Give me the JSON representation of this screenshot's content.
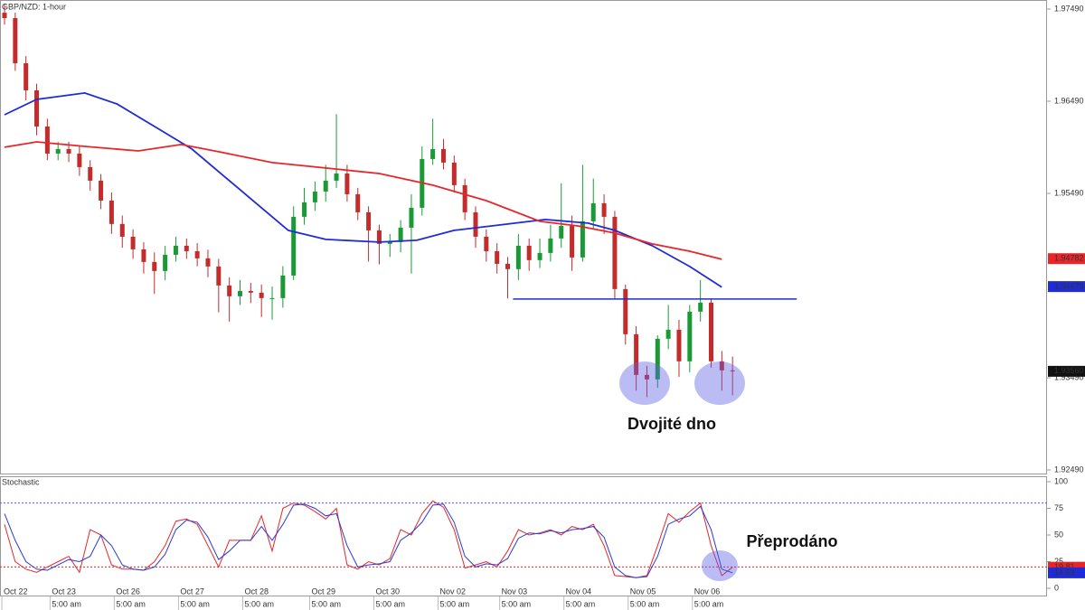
{
  "chart_data": [
    {
      "type": "candlestick",
      "title": "GBP/NZD: 1-hour",
      "x": [
        0,
        4,
        8,
        12,
        16,
        20,
        24,
        28,
        32,
        36,
        40,
        44,
        48,
        52,
        56,
        60,
        64,
        68,
        72,
        76,
        80,
        84,
        88,
        92,
        96,
        100,
        104,
        108,
        112,
        116,
        120,
        124,
        128,
        132,
        136,
        140,
        144,
        148,
        152,
        156,
        160,
        164,
        168,
        172,
        176,
        180,
        184,
        188,
        192,
        196,
        200,
        204,
        208,
        212,
        216,
        220,
        224,
        228,
        232,
        236,
        240,
        244,
        248,
        252,
        256,
        260,
        264,
        268,
        272
      ],
      "open": [
        1.9745,
        1.97392,
        1.96902,
        1.96608,
        1.96216,
        1.95922,
        1.95971,
        1.95922,
        1.95775,
        1.95628,
        1.95412,
        1.95158,
        1.9502,
        1.94883,
        1.94746,
        1.94648,
        1.94824,
        1.94922,
        1.94863,
        1.94785,
        1.94697,
        1.94491,
        1.94374,
        1.94432,
        1.94413,
        1.94354,
        1.94354,
        1.94599,
        1.95236,
        1.95393,
        1.9551,
        1.95628,
        1.95706,
        1.95481,
        1.95285,
        1.95089,
        1.94942,
        1.94962,
        1.95118,
        1.95334,
        1.95863,
        1.95971,
        1.95824,
        1.95579,
        1.95285,
        1.9502,
        1.94863,
        1.94726,
        1.94668,
        1.94922,
        1.94766,
        1.94844,
        1.95001,
        1.95138,
        1.94795,
        1.95187,
        1.95383,
        1.95236,
        1.94452,
        1.93962,
        1.93521,
        1.93472,
        1.93913,
        1.94011,
        1.93668,
        1.94207,
        1.94305,
        1.93668,
        1.9357
      ],
      "high": [
        1.9755,
        1.9745,
        1.9698,
        1.9668,
        1.963,
        1.9605,
        1.9605,
        1.96,
        1.9585,
        1.957,
        1.955,
        1.9525,
        1.951,
        1.9496,
        1.9485,
        1.9492,
        1.9502,
        1.95,
        1.9495,
        1.9488,
        1.9478,
        1.9458,
        1.9455,
        1.9452,
        1.945,
        1.9448,
        1.947,
        1.9535,
        1.9555,
        1.9562,
        1.958,
        1.9635,
        1.958,
        1.9555,
        1.9535,
        1.9515,
        1.9505,
        1.952,
        1.9548,
        1.96,
        1.963,
        1.9608,
        1.959,
        1.9565,
        1.9535,
        1.951,
        1.9495,
        1.948,
        1.9505,
        1.95,
        1.95,
        1.9515,
        1.956,
        1.9525,
        1.958,
        1.9565,
        1.9548,
        1.953,
        1.945,
        1.9405,
        1.9362,
        1.9395,
        1.9428,
        1.9412,
        1.9428,
        1.9455,
        1.9435,
        1.9378,
        1.9372
      ],
      "low": [
        1.9732,
        1.9682,
        1.965,
        1.9612,
        1.9585,
        1.9585,
        1.9583,
        1.9568,
        1.9552,
        1.9532,
        1.9505,
        1.949,
        1.9478,
        1.9462,
        1.944,
        1.9455,
        1.9475,
        1.9478,
        1.947,
        1.9458,
        1.942,
        1.941,
        1.9428,
        1.943,
        1.9415,
        1.9412,
        1.9425,
        1.9455,
        1.9515,
        1.953,
        1.954,
        1.9555,
        1.954,
        1.952,
        1.9475,
        1.9472,
        1.948,
        1.9485,
        1.9462,
        1.9525,
        1.958,
        1.9575,
        1.955,
        1.952,
        1.949,
        1.9475,
        1.9462,
        1.9435,
        1.9455,
        1.9465,
        1.9468,
        1.9475,
        1.949,
        1.9465,
        1.9475,
        1.951,
        1.9505,
        1.9435,
        1.9385,
        1.9335,
        1.9328,
        1.9338,
        1.938,
        1.935,
        1.9355,
        1.941,
        1.936,
        1.9335,
        1.933
      ],
      "close": [
        1.97392,
        1.96902,
        1.96608,
        1.96216,
        1.95922,
        1.95971,
        1.95922,
        1.95775,
        1.95628,
        1.95412,
        1.95158,
        1.9502,
        1.94883,
        1.94746,
        1.94648,
        1.94824,
        1.94922,
        1.94863,
        1.94785,
        1.94697,
        1.94491,
        1.94374,
        1.94432,
        1.94413,
        1.94354,
        1.94354,
        1.94599,
        1.95236,
        1.95393,
        1.9551,
        1.95628,
        1.95706,
        1.95481,
        1.95285,
        1.95089,
        1.94942,
        1.94962,
        1.95118,
        1.95334,
        1.95863,
        1.95971,
        1.95824,
        1.95579,
        1.95285,
        1.9502,
        1.94863,
        1.94726,
        1.94668,
        1.94922,
        1.94766,
        1.94844,
        1.95001,
        1.95138,
        1.94795,
        1.95187,
        1.95383,
        1.95236,
        1.94452,
        1.93962,
        1.93521,
        1.93472,
        1.93913,
        1.94011,
        1.93668,
        1.94207,
        1.94305,
        1.93668,
        1.9357,
        1.9356
      ],
      "up_color": "#1a9a36",
      "down_color": "#c42b2b",
      "series": [
        {
          "color": "#1f2bd6",
          "x": [
            0,
            12,
            30,
            42,
            56,
            70,
            82,
            96,
            106,
            120,
            140,
            154,
            168,
            188,
            202,
            218,
            228,
            242,
            256,
            268
          ],
          "values": [
            1.96343,
            1.9651,
            1.96579,
            1.96461,
            1.96216,
            1.95971,
            1.95677,
            1.95334,
            1.95089,
            1.94991,
            1.94962,
            1.94981,
            1.95089,
            1.95158,
            1.95207,
            1.95167,
            1.95089,
            1.94922,
            1.94697,
            1.94472
          ]
        },
        {
          "color": "#e8262a",
          "x": [
            0,
            12,
            30,
            50,
            66,
            80,
            100,
            120,
            140,
            160,
            180,
            200,
            214,
            228,
            242,
            256,
            268
          ],
          "values": [
            1.95991,
            1.96049,
            1.96,
            1.95951,
            1.9602,
            1.95942,
            1.95824,
            1.95765,
            1.95706,
            1.95579,
            1.95412,
            1.95187,
            1.95138,
            1.9506,
            1.94942,
            1.94863,
            1.94775
          ]
        }
      ],
      "neckline": {
        "x": [
          190,
          296
        ],
        "y": 1.94344,
        "color": "#1f2bd6"
      },
      "annotations": [
        "Dvojité dno"
      ],
      "price_labels": [
        {
          "value": 1.94782,
          "color": "#e8262a"
        },
        {
          "value": 1.94479,
          "color": "#1f2bd6"
        },
        {
          "value": 1.9356,
          "label": "1.93560",
          "color": "#111111"
        }
      ],
      "xlim": [
        -1.69,
        389.5
      ],
      "ylim": [
        1.92441,
        1.97588
      ],
      "yticks": [
        {
          "value": 1.9749,
          "label": "1.97490"
        },
        {
          "value": 1.9649,
          "label": "1.96490"
        },
        {
          "value": 1.9549,
          "label": "1.95490"
        },
        {
          "value": 1.9349,
          "label": "1.93490"
        },
        {
          "value": 1.9249,
          "label": "1.92490"
        }
      ]
    },
    {
      "type": "stochastic",
      "title": "Stochastic",
      "x": [
        0,
        4,
        8,
        12,
        16,
        20,
        24,
        28,
        32,
        36,
        40,
        44,
        48,
        52,
        56,
        60,
        64,
        68,
        72,
        76,
        80,
        84,
        88,
        92,
        96,
        100,
        104,
        108,
        112,
        116,
        120,
        124,
        128,
        132,
        136,
        140,
        144,
        148,
        152,
        156,
        160,
        164,
        168,
        172,
        176,
        180,
        184,
        188,
        192,
        196,
        200,
        204,
        208,
        212,
        216,
        220,
        224,
        228,
        232,
        236,
        240,
        244,
        248,
        252,
        256,
        260,
        264,
        268,
        272
      ],
      "series": [
        {
          "color": "#e8262a",
          "values": [
            60,
            25,
            18,
            15,
            20,
            25,
            30,
            15,
            55,
            50,
            22,
            18,
            18,
            17,
            25,
            40,
            63,
            65,
            60,
            40,
            20,
            45,
            45,
            45,
            68,
            35,
            75,
            80,
            78,
            72,
            65,
            75,
            22,
            18,
            25,
            22,
            28,
            55,
            50,
            70,
            82,
            76,
            55,
            19,
            22,
            25,
            20,
            35,
            55,
            50,
            52,
            55,
            50,
            58,
            55,
            60,
            40,
            12,
            11,
            10,
            12,
            40,
            70,
            62,
            72,
            80,
            40,
            12,
            19.81
          ]
        },
        {
          "color": "#2a3bd6",
          "values": [
            70,
            45,
            25,
            18,
            17,
            22,
            27,
            25,
            30,
            50,
            40,
            22,
            18,
            17,
            20,
            32,
            55,
            64,
            62,
            48,
            27,
            35,
            45,
            45,
            58,
            45,
            60,
            78,
            79,
            75,
            68,
            70,
            40,
            20,
            22,
            23,
            25,
            45,
            52,
            62,
            78,
            79,
            62,
            30,
            20,
            23,
            22,
            28,
            47,
            52,
            51,
            54,
            52,
            55,
            56,
            58,
            48,
            20,
            12,
            10,
            11,
            30,
            60,
            65,
            68,
            77,
            55,
            18,
            14.53
          ]
        }
      ],
      "levels": [
        {
          "value": 80,
          "color": "#5a5ad6"
        },
        {
          "value": 20,
          "color": "#e8262a"
        }
      ],
      "annotations": [
        "Přeprodáno"
      ],
      "price_labels": [
        {
          "value": 19.81,
          "color": "#e8262a"
        },
        {
          "value": 14.53,
          "color": "#1f2bd6"
        }
      ],
      "xlim": [
        -1.69,
        389.5
      ],
      "ylim": [
        -7.6,
        105.1
      ],
      "yticks": [
        100,
        75,
        50,
        25,
        0
      ],
      "xticks": [
        {
          "value": -1,
          "label": "Oct 22"
        },
        {
          "value": 17,
          "label": "Oct 23"
        },
        {
          "value": 41,
          "label": "Oct 26"
        },
        {
          "value": 65,
          "label": "Oct 27"
        },
        {
          "value": 89,
          "label": "Oct 28"
        },
        {
          "value": 114,
          "label": "Oct 29"
        },
        {
          "value": 138,
          "label": "Oct 30"
        },
        {
          "value": 162,
          "label": "Nov 02"
        },
        {
          "value": 185,
          "label": "Nov 03"
        },
        {
          "value": 209,
          "label": "Nov 04"
        },
        {
          "value": 233,
          "label": "Nov 05"
        },
        {
          "value": 257,
          "label": "Nov 06"
        }
      ],
      "xticks_time": [
        {
          "value": 17,
          "label": "5:00 am"
        },
        {
          "value": 41,
          "label": "5:00 am"
        },
        {
          "value": 65,
          "label": "5:00 am"
        },
        {
          "value": 89,
          "label": "5:00 am"
        },
        {
          "value": 114,
          "label": "5:00 am"
        },
        {
          "value": 138,
          "label": "5:00 am"
        },
        {
          "value": 162,
          "label": "5:00 am"
        },
        {
          "value": 185,
          "label": "5:00 am"
        },
        {
          "value": 209,
          "label": "5:00 am"
        },
        {
          "value": 233,
          "label": "5:00 am"
        },
        {
          "value": 257,
          "label": "5:00 am"
        }
      ]
    }
  ]
}
